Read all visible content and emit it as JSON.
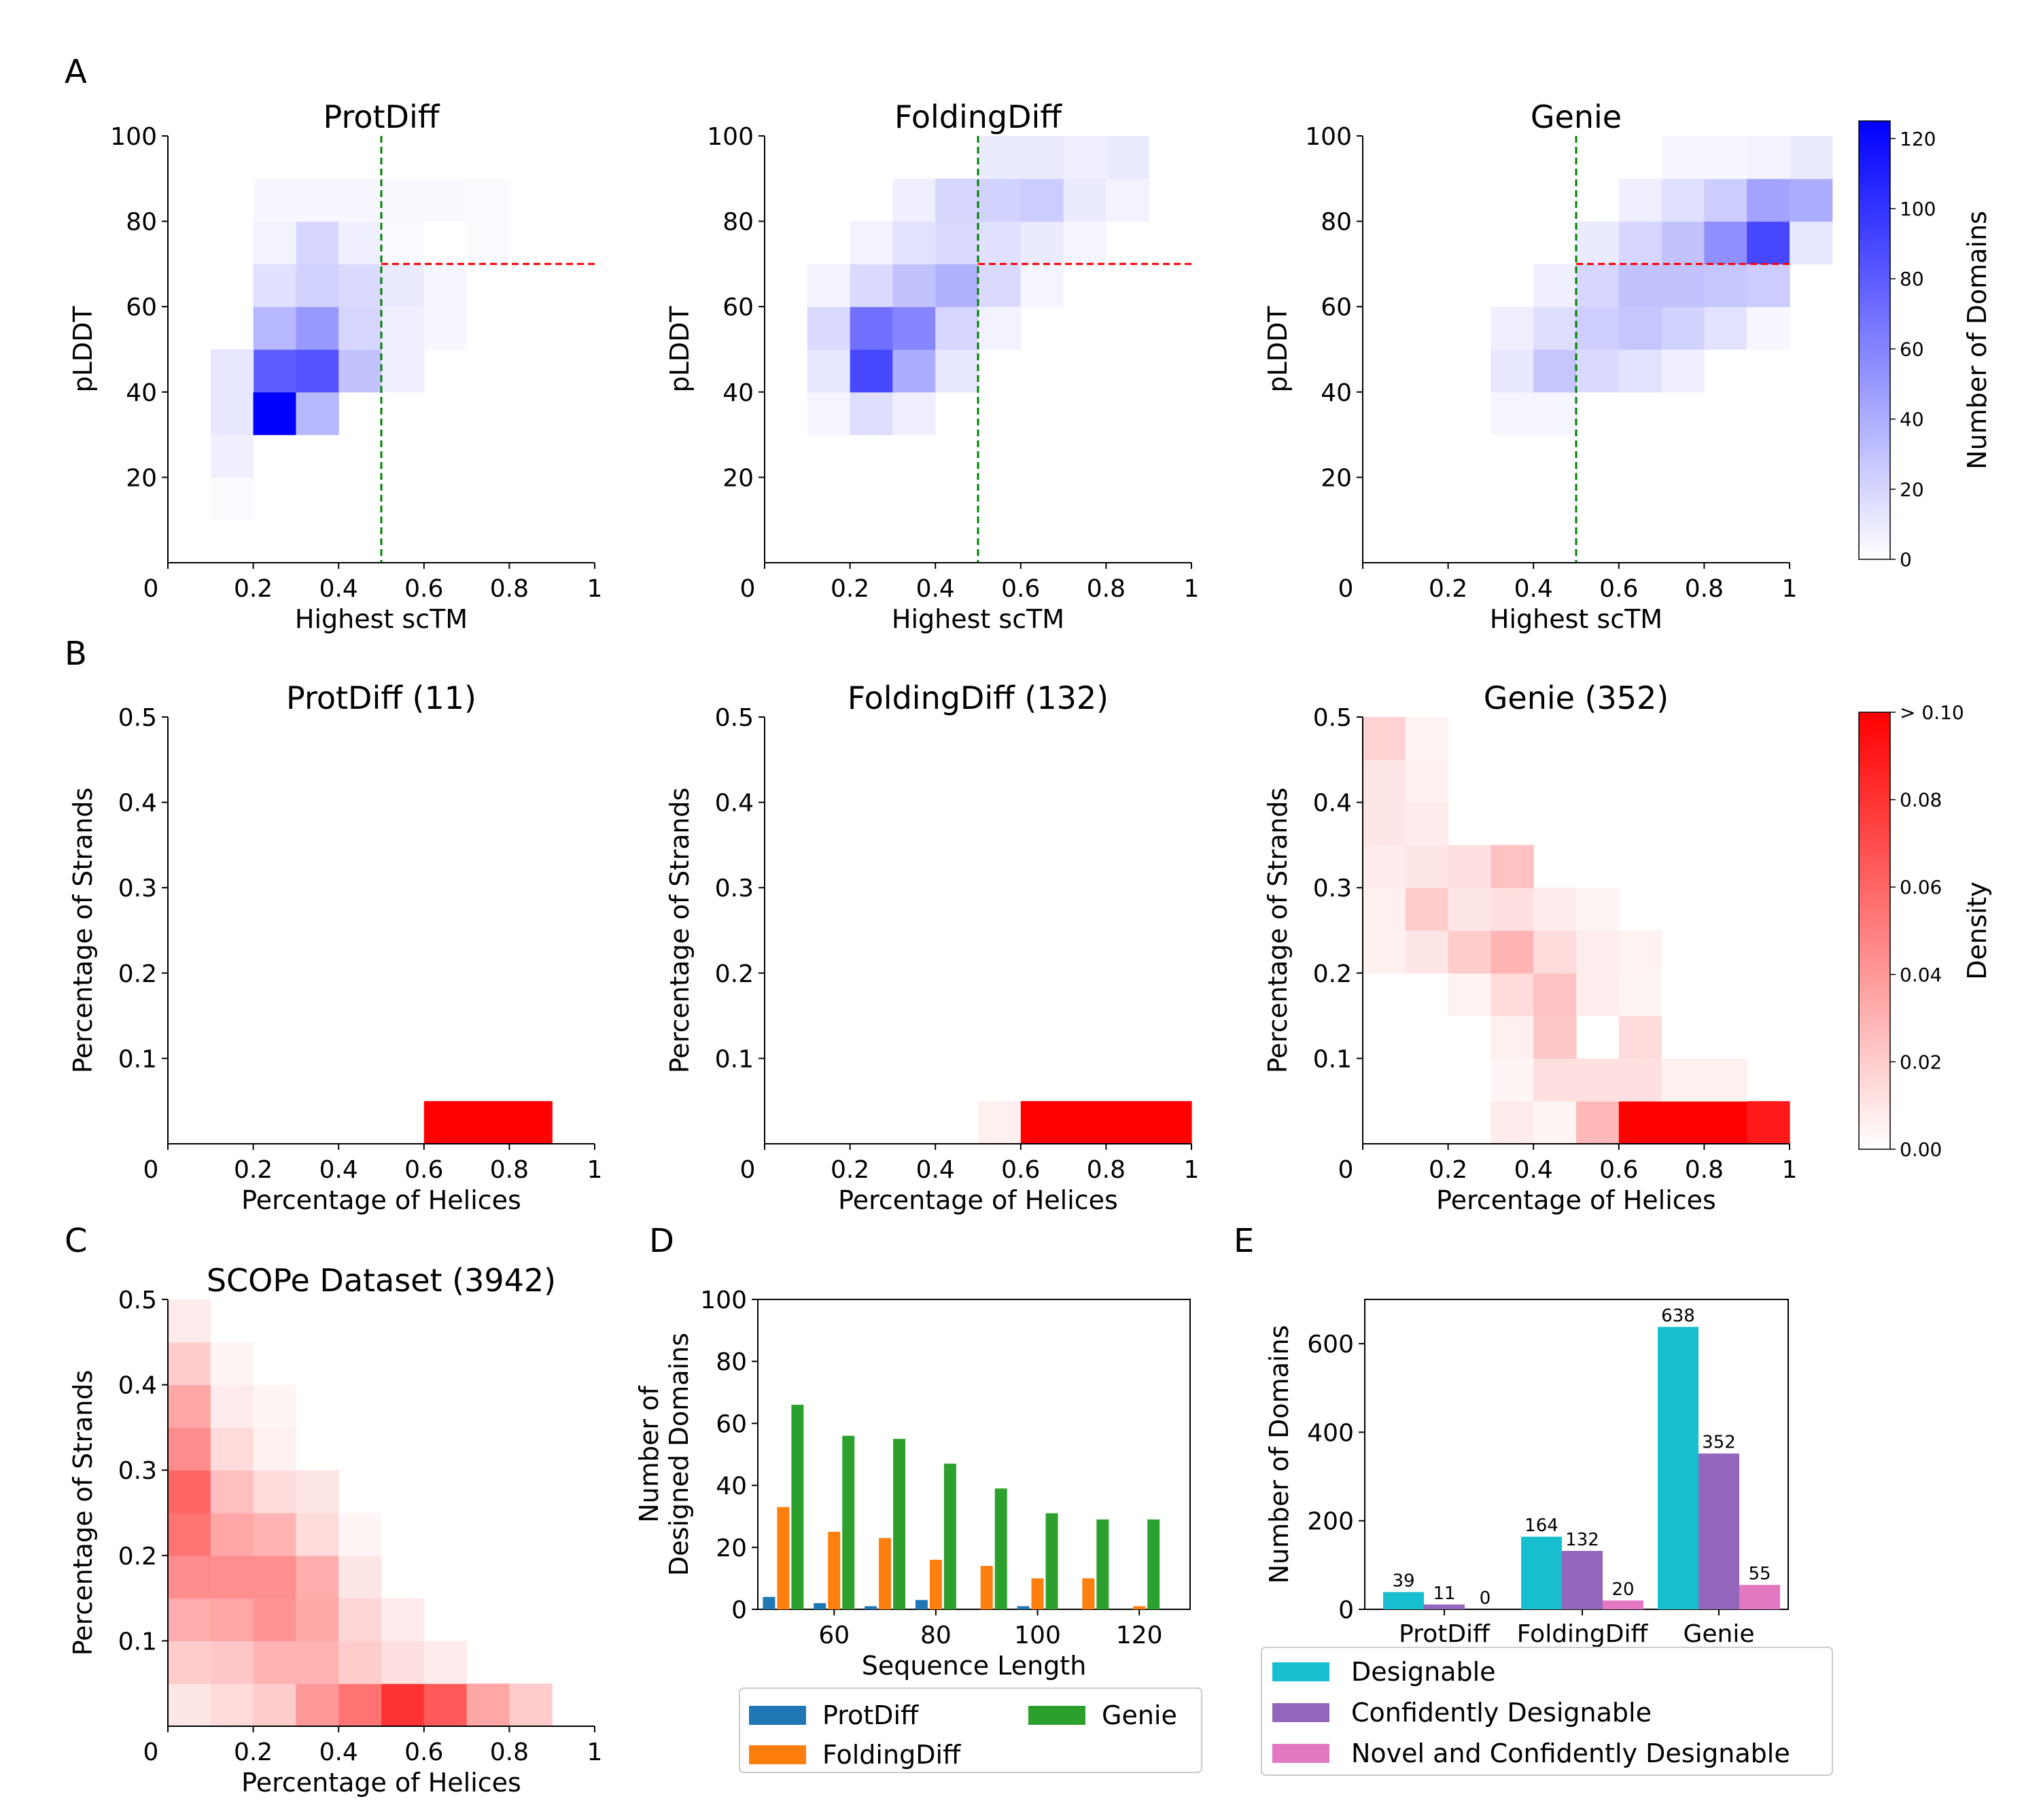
{
  "panel_letters": [
    "A",
    "B",
    "C",
    "D",
    "E"
  ],
  "colors": {
    "blue_cmap_max": "#0000ff",
    "red_cmap_max": "#ff0000",
    "vline": "#008000",
    "hline": "#ff0000",
    "prot": "#1f77b4",
    "fold": "#ff7f0e",
    "genie": "#2ca02c",
    "designable": "#17becf",
    "confident": "#9467bd",
    "novel": "#e377c2"
  },
  "chart_data": [
    {
      "id": "A1",
      "type": "heatmap",
      "title": "ProtDiff",
      "xlabel": "Highest scTM",
      "ylabel": "pLDDT",
      "xlim": [
        0,
        1
      ],
      "ylim": [
        0,
        100
      ],
      "xticks": [
        "0",
        "0.2",
        "0.4",
        "0.6",
        "0.8",
        "1"
      ],
      "yticks": [
        "20",
        "40",
        "60",
        "80",
        "100"
      ],
      "x_bin": 0.1,
      "y_bin": 10,
      "vmax": 125,
      "thresholds": {
        "x": 0.5,
        "y": 70
      },
      "cells": [
        [
          1,
          1,
          2
        ],
        [
          1,
          2,
          8
        ],
        [
          1,
          3,
          12
        ],
        [
          2,
          3,
          125
        ],
        [
          3,
          3,
          35
        ],
        [
          2,
          4,
          80
        ],
        [
          3,
          4,
          85
        ],
        [
          4,
          4,
          30
        ],
        [
          5,
          4,
          8
        ],
        [
          1,
          4,
          12
        ],
        [
          2,
          5,
          35
        ],
        [
          3,
          5,
          50
        ],
        [
          4,
          5,
          20
        ],
        [
          5,
          5,
          8
        ],
        [
          6,
          5,
          4
        ],
        [
          2,
          6,
          15
        ],
        [
          3,
          6,
          22
        ],
        [
          4,
          6,
          18
        ],
        [
          5,
          6,
          10
        ],
        [
          6,
          6,
          4
        ],
        [
          2,
          7,
          6
        ],
        [
          3,
          7,
          20
        ],
        [
          4,
          7,
          8
        ],
        [
          5,
          7,
          2
        ],
        [
          7,
          7,
          2
        ],
        [
          2,
          8,
          4
        ],
        [
          3,
          8,
          4
        ],
        [
          4,
          8,
          4
        ],
        [
          5,
          8,
          3
        ],
        [
          6,
          8,
          3
        ],
        [
          7,
          8,
          2
        ]
      ]
    },
    {
      "id": "A2",
      "type": "heatmap",
      "title": "FoldingDiff",
      "xlabel": "Highest scTM",
      "ylabel": "pLDDT",
      "xlim": [
        0,
        1
      ],
      "ylim": [
        0,
        100
      ],
      "xticks": [
        "0",
        "0.2",
        "0.4",
        "0.6",
        "0.8",
        "1"
      ],
      "yticks": [
        "20",
        "40",
        "60",
        "80",
        "100"
      ],
      "x_bin": 0.1,
      "y_bin": 10,
      "vmax": 125,
      "thresholds": {
        "x": 0.5,
        "y": 70
      },
      "cells": [
        [
          1,
          3,
          5
        ],
        [
          2,
          3,
          16
        ],
        [
          3,
          3,
          8
        ],
        [
          1,
          4,
          12
        ],
        [
          2,
          4,
          90
        ],
        [
          3,
          4,
          40
        ],
        [
          4,
          4,
          12
        ],
        [
          1,
          5,
          18
        ],
        [
          2,
          5,
          70
        ],
        [
          3,
          5,
          60
        ],
        [
          4,
          5,
          20
        ],
        [
          5,
          5,
          6
        ],
        [
          1,
          6,
          6
        ],
        [
          2,
          6,
          18
        ],
        [
          3,
          6,
          30
        ],
        [
          4,
          6,
          38
        ],
        [
          5,
          6,
          18
        ],
        [
          6,
          6,
          5
        ],
        [
          2,
          7,
          6
        ],
        [
          3,
          7,
          14
        ],
        [
          4,
          7,
          18
        ],
        [
          5,
          7,
          15
        ],
        [
          6,
          7,
          10
        ],
        [
          7,
          7,
          5
        ],
        [
          3,
          8,
          8
        ],
        [
          4,
          8,
          20
        ],
        [
          5,
          8,
          22
        ],
        [
          6,
          8,
          25
        ],
        [
          7,
          8,
          10
        ],
        [
          8,
          8,
          6
        ],
        [
          5,
          9,
          10
        ],
        [
          6,
          9,
          10
        ],
        [
          7,
          9,
          8
        ],
        [
          8,
          9,
          10
        ]
      ]
    },
    {
      "id": "A3",
      "type": "heatmap",
      "title": "Genie",
      "xlabel": "Highest scTM",
      "ylabel": "pLDDT",
      "xlim": [
        0,
        1
      ],
      "ylim": [
        0,
        100
      ],
      "xticks": [
        "0",
        "0.2",
        "0.4",
        "0.6",
        "0.8",
        "1"
      ],
      "yticks": [
        "20",
        "40",
        "60",
        "80",
        "100"
      ],
      "x_bin": 0.1,
      "y_bin": 10,
      "vmax": 125,
      "thresholds": {
        "x": 0.5,
        "y": 70
      },
      "cells": [
        [
          3,
          3,
          5
        ],
        [
          4,
          3,
          5
        ],
        [
          3,
          4,
          12
        ],
        [
          4,
          4,
          28
        ],
        [
          5,
          4,
          18
        ],
        [
          6,
          4,
          14
        ],
        [
          7,
          4,
          8
        ],
        [
          3,
          5,
          8
        ],
        [
          4,
          5,
          16
        ],
        [
          5,
          5,
          24
        ],
        [
          6,
          5,
          28
        ],
        [
          7,
          5,
          22
        ],
        [
          8,
          5,
          14
        ],
        [
          9,
          5,
          4
        ],
        [
          4,
          6,
          8
        ],
        [
          5,
          6,
          20
        ],
        [
          6,
          6,
          30
        ],
        [
          7,
          6,
          30
        ],
        [
          8,
          6,
          28
        ],
        [
          9,
          6,
          25
        ],
        [
          5,
          7,
          10
        ],
        [
          6,
          7,
          20
        ],
        [
          7,
          7,
          30
        ],
        [
          8,
          7,
          55
        ],
        [
          9,
          7,
          90
        ],
        [
          10,
          7,
          12
        ],
        [
          6,
          8,
          8
        ],
        [
          7,
          8,
          15
        ],
        [
          8,
          8,
          25
        ],
        [
          9,
          8,
          45
        ],
        [
          10,
          8,
          40
        ],
        [
          7,
          9,
          4
        ],
        [
          8,
          9,
          4
        ],
        [
          9,
          9,
          6
        ],
        [
          10,
          9,
          10
        ]
      ]
    },
    {
      "id": "B1",
      "type": "heatmap",
      "title": "ProtDiff (11)",
      "xlabel": "Percentage of Helices",
      "ylabel": "Percentage of Strands",
      "xlim": [
        0,
        1
      ],
      "ylim": [
        0,
        0.5
      ],
      "xticks": [
        "0",
        "0.2",
        "0.4",
        "0.6",
        "0.8",
        "1"
      ],
      "yticks": [
        "0.1",
        "0.2",
        "0.3",
        "0.4",
        "0.5"
      ],
      "x_bin": 0.1,
      "y_bin": 0.05,
      "vmax": 0.1,
      "cells": [
        [
          6,
          0,
          0.45
        ],
        [
          7,
          0,
          0.45
        ],
        [
          8,
          0,
          0.18
        ]
      ]
    },
    {
      "id": "B2",
      "type": "heatmap",
      "title": "FoldingDiff (132)",
      "xlabel": "Percentage of Helices",
      "ylabel": "Percentage of Strands",
      "xlim": [
        0,
        1
      ],
      "ylim": [
        0,
        0.5
      ],
      "xticks": [
        "0",
        "0.2",
        "0.4",
        "0.6",
        "0.8",
        "1"
      ],
      "yticks": [
        "0.1",
        "0.2",
        "0.3",
        "0.4",
        "0.5"
      ],
      "x_bin": 0.1,
      "y_bin": 0.05,
      "vmax": 0.1,
      "cells": [
        [
          5,
          0,
          0.006
        ],
        [
          6,
          0,
          0.3
        ],
        [
          7,
          0,
          0.35
        ],
        [
          8,
          0,
          0.25
        ],
        [
          9,
          0,
          0.2
        ]
      ]
    },
    {
      "id": "B3",
      "type": "heatmap",
      "title": "Genie (352)",
      "xlabel": "Percentage of Helices",
      "ylabel": "Percentage of Strands",
      "xlim": [
        0,
        1
      ],
      "ylim": [
        0,
        0.5
      ],
      "xticks": [
        "0",
        "0.2",
        "0.4",
        "0.6",
        "0.8",
        "1"
      ],
      "yticks": [
        "0.1",
        "0.2",
        "0.3",
        "0.4",
        "0.5"
      ],
      "x_bin": 0.1,
      "y_bin": 0.05,
      "vmax": 0.1,
      "cells": [
        [
          3,
          0,
          0.008
        ],
        [
          4,
          0,
          0.004
        ],
        [
          5,
          0,
          0.028
        ],
        [
          6,
          0,
          0.3
        ],
        [
          7,
          0,
          0.25
        ],
        [
          8,
          0,
          0.15
        ],
        [
          9,
          0,
          0.09
        ],
        [
          3,
          1,
          0.004
        ],
        [
          4,
          1,
          0.012
        ],
        [
          5,
          1,
          0.012
        ],
        [
          6,
          1,
          0.012
        ],
        [
          7,
          1,
          0.006
        ],
        [
          8,
          1,
          0.006
        ],
        [
          3,
          2,
          0.006
        ],
        [
          4,
          2,
          0.022
        ],
        [
          6,
          2,
          0.014
        ],
        [
          2,
          3,
          0.005
        ],
        [
          3,
          3,
          0.014
        ],
        [
          4,
          3,
          0.024
        ],
        [
          5,
          3,
          0.007
        ],
        [
          6,
          3,
          0.004
        ],
        [
          0,
          4,
          0.006
        ],
        [
          1,
          4,
          0.01
        ],
        [
          2,
          4,
          0.02
        ],
        [
          3,
          4,
          0.03
        ],
        [
          4,
          4,
          0.014
        ],
        [
          5,
          4,
          0.007
        ],
        [
          6,
          4,
          0.005
        ],
        [
          0,
          5,
          0.006
        ],
        [
          1,
          5,
          0.02
        ],
        [
          2,
          5,
          0.01
        ],
        [
          3,
          5,
          0.012
        ],
        [
          4,
          5,
          0.008
        ],
        [
          5,
          5,
          0.004
        ],
        [
          0,
          6,
          0.008
        ],
        [
          1,
          6,
          0.01
        ],
        [
          2,
          6,
          0.012
        ],
        [
          3,
          6,
          0.024
        ],
        [
          0,
          7,
          0.01
        ],
        [
          1,
          7,
          0.008
        ],
        [
          0,
          8,
          0.01
        ],
        [
          1,
          8,
          0.006
        ],
        [
          0,
          9,
          0.018
        ],
        [
          1,
          9,
          0.005
        ]
      ]
    },
    {
      "id": "C",
      "type": "heatmap",
      "title": "SCOPe Dataset (3942)",
      "xlabel": "Percentage of Helices",
      "ylabel": "Percentage of Strands",
      "xlim": [
        0,
        1
      ],
      "ylim": [
        0,
        0.5
      ],
      "xticks": [
        "0",
        "0.2",
        "0.4",
        "0.6",
        "0.8",
        "1"
      ],
      "yticks": [
        "0.1",
        "0.2",
        "0.3",
        "0.4",
        "0.5"
      ],
      "x_bin": 0.1,
      "y_bin": 0.05,
      "vmax": 0.1,
      "cells": [
        [
          0,
          0,
          0.01
        ],
        [
          1,
          0,
          0.014
        ],
        [
          2,
          0,
          0.02
        ],
        [
          3,
          0,
          0.04
        ],
        [
          4,
          0,
          0.055
        ],
        [
          5,
          0,
          0.08
        ],
        [
          6,
          0,
          0.065
        ],
        [
          7,
          0,
          0.035
        ],
        [
          8,
          0,
          0.02
        ],
        [
          0,
          1,
          0.02
        ],
        [
          1,
          1,
          0.022
        ],
        [
          2,
          1,
          0.03
        ],
        [
          3,
          1,
          0.03
        ],
        [
          4,
          1,
          0.02
        ],
        [
          5,
          1,
          0.012
        ],
        [
          6,
          1,
          0.008
        ],
        [
          0,
          2,
          0.032
        ],
        [
          1,
          2,
          0.035
        ],
        [
          2,
          2,
          0.042
        ],
        [
          3,
          2,
          0.034
        ],
        [
          4,
          2,
          0.016
        ],
        [
          5,
          2,
          0.008
        ],
        [
          0,
          3,
          0.045
        ],
        [
          1,
          3,
          0.044
        ],
        [
          2,
          3,
          0.044
        ],
        [
          3,
          3,
          0.032
        ],
        [
          4,
          3,
          0.01
        ],
        [
          0,
          4,
          0.055
        ],
        [
          1,
          4,
          0.035
        ],
        [
          2,
          4,
          0.03
        ],
        [
          3,
          4,
          0.014
        ],
        [
          4,
          4,
          0.004
        ],
        [
          0,
          5,
          0.06
        ],
        [
          1,
          5,
          0.025
        ],
        [
          2,
          5,
          0.014
        ],
        [
          3,
          5,
          0.01
        ],
        [
          0,
          6,
          0.045
        ],
        [
          1,
          6,
          0.014
        ],
        [
          2,
          6,
          0.006
        ],
        [
          0,
          7,
          0.035
        ],
        [
          1,
          7,
          0.008
        ],
        [
          2,
          7,
          0.004
        ],
        [
          0,
          8,
          0.02
        ],
        [
          1,
          8,
          0.004
        ],
        [
          0,
          9,
          0.008
        ]
      ]
    },
    {
      "id": "D",
      "type": "bar",
      "xlabel": "Sequence Length",
      "ylabel": [
        "Number of",
        "Designed Domains"
      ],
      "xlim": [
        45,
        130
      ],
      "ylim": [
        0,
        100
      ],
      "xticks": [
        60,
        80,
        100,
        120
      ],
      "yticks": [
        0,
        20,
        40,
        60,
        80,
        100
      ],
      "x": [
        50,
        60,
        70,
        80,
        90,
        100,
        110,
        120
      ],
      "series": [
        {
          "name": "ProtDiff",
          "values": [
            4,
            2,
            1,
            3,
            0,
            1,
            0,
            0
          ]
        },
        {
          "name": "FoldingDiff",
          "values": [
            33,
            25,
            23,
            16,
            14,
            10,
            10,
            1
          ]
        },
        {
          "name": "Genie",
          "values": [
            66,
            56,
            55,
            47,
            39,
            31,
            29,
            29
          ]
        }
      ],
      "legend": [
        "ProtDiff",
        "FoldingDiff",
        "Genie"
      ]
    },
    {
      "id": "E",
      "type": "bar",
      "ylabel": "Number of Domains",
      "ylim": [
        0,
        700
      ],
      "yticks": [
        0,
        200,
        400,
        600
      ],
      "categories": [
        "ProtDiff",
        "FoldingDiff",
        "Genie"
      ],
      "series": [
        {
          "name": "Designable",
          "values": [
            39,
            164,
            638
          ]
        },
        {
          "name": "Confidently Designable",
          "values": [
            11,
            132,
            352
          ]
        },
        {
          "name": "Novel and Confidently Designable",
          "values": [
            0,
            20,
            55
          ]
        }
      ],
      "legend": [
        "Designable",
        "Confidently Designable",
        "Novel and Confidently Designable"
      ]
    }
  ],
  "colorbars": {
    "blue": {
      "label": "Number of Domains",
      "ticks": [
        "0",
        "20",
        "40",
        "60",
        "80",
        "100",
        "120"
      ],
      "vmax": 125
    },
    "red": {
      "label": "Density",
      "ticks": [
        "0.00",
        "0.02",
        "0.04",
        "0.06",
        "0.08",
        "> 0.10"
      ],
      "vmax": 0.1
    }
  }
}
